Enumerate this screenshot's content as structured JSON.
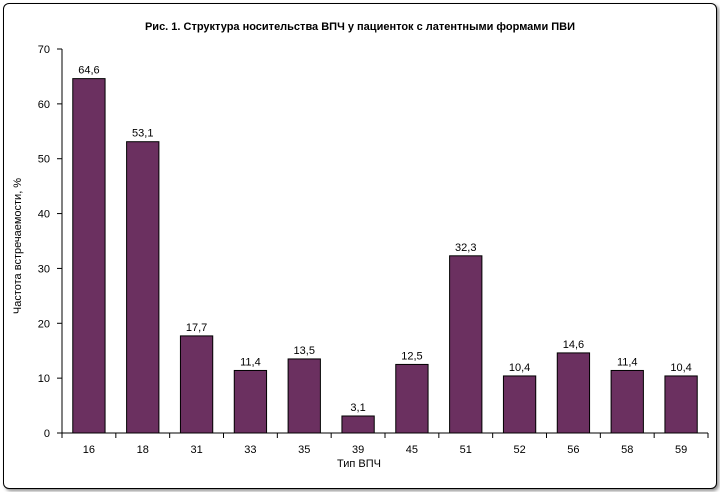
{
  "chart_data": {
    "type": "bar",
    "title": "Рис. 1. Структура носительства ВПЧ у пациенток с латентными формами ПВИ",
    "xlabel": "Тип ВПЧ",
    "ylabel": "Частота встречаемости, %",
    "categories": [
      "16",
      "18",
      "31",
      "33",
      "35",
      "39",
      "45",
      "51",
      "52",
      "56",
      "58",
      "59"
    ],
    "values": [
      64.6,
      53.1,
      17.7,
      11.4,
      13.5,
      3.1,
      12.5,
      32.3,
      10.4,
      14.6,
      11.4,
      10.4
    ],
    "value_labels": [
      "64,6",
      "53,1",
      "17,7",
      "11,4",
      "13,5",
      "3,1",
      "12,5",
      "32,3",
      "10,4",
      "14,6",
      "11,4",
      "10,4"
    ],
    "ylim": [
      0,
      70
    ],
    "yticks": [
      0,
      10,
      20,
      30,
      40,
      50,
      60,
      70
    ],
    "grid": false,
    "legend": "none",
    "bar_color": "#6b3060"
  }
}
